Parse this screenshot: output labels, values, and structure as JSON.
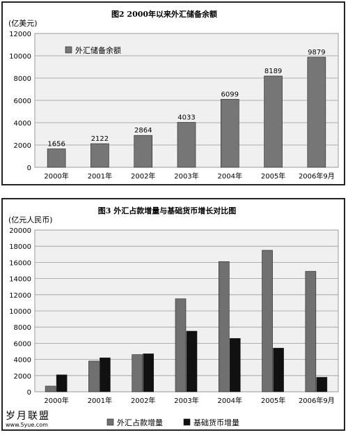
{
  "chart_data": [
    {
      "type": "bar",
      "title": "图2 2000年以来外汇储备余额",
      "ylabel": "(亿美元)",
      "categories": [
        "2000年",
        "2001年",
        "2002年",
        "2003年",
        "2004年",
        "2005年",
        "2006年9月"
      ],
      "series": [
        {
          "name": "外汇储备余额",
          "values": [
            1656,
            2122,
            2864,
            4033,
            6099,
            8189,
            9879
          ],
          "color": "#767676"
        }
      ],
      "ylim": [
        0,
        12000
      ],
      "yticks": [
        0,
        2000,
        4000,
        6000,
        8000,
        10000,
        12000
      ],
      "data_labels": true,
      "grid": true,
      "legend": "top-left"
    },
    {
      "type": "bar",
      "title": "图3 外汇占款增量与基础货币增长对比图",
      "ylabel": "(亿元人民币)",
      "categories": [
        "2000年",
        "2001年",
        "2002年",
        "2003年",
        "2004年",
        "2005年",
        "2006年9月"
      ],
      "series": [
        {
          "name": "外汇占款增量",
          "values": [
            700,
            3800,
            4600,
            11500,
            16100,
            17500,
            14900
          ],
          "color": "#707070"
        },
        {
          "name": "基础货币增量",
          "values": [
            2100,
            4200,
            4700,
            7500,
            6600,
            5400,
            1800
          ],
          "color": "#111111"
        }
      ],
      "ylim": [
        0,
        20000
      ],
      "yticks": [
        0,
        2000,
        4000,
        6000,
        8000,
        10000,
        12000,
        14000,
        16000,
        18000,
        20000
      ],
      "grid": true,
      "legend": "bottom"
    }
  ],
  "watermark": {
    "text": "岁月联盟",
    "url": "www.5yue.com"
  }
}
